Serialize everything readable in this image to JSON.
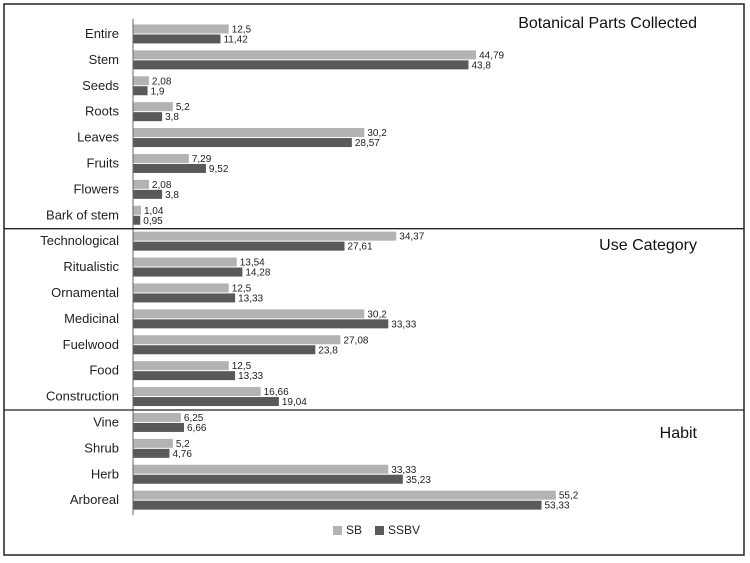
{
  "chart_data": {
    "type": "bar",
    "orientation": "horizontal",
    "legend_position": "bottom",
    "series": [
      {
        "name": "SB",
        "color": "#b3b3b3"
      },
      {
        "name": "SSBV",
        "color": "#595959"
      }
    ],
    "sections": [
      {
        "title": "Botanical Parts Collected",
        "rows": [
          {
            "category": "Entire",
            "SB": 12.5,
            "SSBV": 11.42,
            "SB_label": "12,5",
            "SSBV_label": "11,42"
          },
          {
            "category": "Stem",
            "SB": 44.79,
            "SSBV": 43.8,
            "SB_label": "44,79",
            "SSBV_label": "43,8"
          },
          {
            "category": "Seeds",
            "SB": 2.08,
            "SSBV": 1.9,
            "SB_label": "2,08",
            "SSBV_label": "1,9"
          },
          {
            "category": "Roots",
            "SB": 5.2,
            "SSBV": 3.8,
            "SB_label": "5,2",
            "SSBV_label": "3,8"
          },
          {
            "category": "Leaves",
            "SB": 30.2,
            "SSBV": 28.57,
            "SB_label": "30,2",
            "SSBV_label": "28,57"
          },
          {
            "category": "Fruits",
            "SB": 7.29,
            "SSBV": 9.52,
            "SB_label": "7,29",
            "SSBV_label": "9,52"
          },
          {
            "category": "Flowers",
            "SB": 2.08,
            "SSBV": 3.8,
            "SB_label": "2,08",
            "SSBV_label": "3,8"
          },
          {
            "category": "Bark  of stem",
            "SB": 1.04,
            "SSBV": 0.95,
            "SB_label": "1,04",
            "SSBV_label": "0,95"
          }
        ]
      },
      {
        "title": "Use Category",
        "rows": [
          {
            "category": "Technological",
            "SB": 34.37,
            "SSBV": 27.61,
            "SB_label": "34,37",
            "SSBV_label": "27,61"
          },
          {
            "category": "Ritualistic",
            "SB": 13.54,
            "SSBV": 14.28,
            "SB_label": "13,54",
            "SSBV_label": "14,28"
          },
          {
            "category": "Ornamental",
            "SB": 12.5,
            "SSBV": 13.33,
            "SB_label": "12,5",
            "SSBV_label": "13,33"
          },
          {
            "category": "Medicinal",
            "SB": 30.2,
            "SSBV": 33.33,
            "SB_label": "30,2",
            "SSBV_label": "33,33"
          },
          {
            "category": "Fuelwood",
            "SB": 27.08,
            "SSBV": 23.8,
            "SB_label": "27,08",
            "SSBV_label": "23,8"
          },
          {
            "category": "Food",
            "SB": 12.5,
            "SSBV": 13.33,
            "SB_label": "12,5",
            "SSBV_label": "13,33"
          },
          {
            "category": "Construction",
            "SB": 16.66,
            "SSBV": 19.04,
            "SB_label": "16,66",
            "SSBV_label": "19,04"
          }
        ]
      },
      {
        "title": "Habit",
        "rows": [
          {
            "category": "Vine",
            "SB": 6.25,
            "SSBV": 6.66,
            "SB_label": "6,25",
            "SSBV_label": "6,66"
          },
          {
            "category": "Shrub",
            "SB": 5.2,
            "SSBV": 4.76,
            "SB_label": "5,2",
            "SSBV_label": "4,76"
          },
          {
            "category": "Herb",
            "SB": 33.33,
            "SSBV": 35.23,
            "SB_label": "33,33",
            "SSBV_label": "35,23"
          },
          {
            "category": "Arboreal",
            "SB": 55.2,
            "SSBV": 53.33,
            "SB_label": "55,2",
            "SSBV_label": "53,33"
          }
        ]
      }
    ],
    "xlim": [
      0,
      60
    ],
    "grid": false
  }
}
